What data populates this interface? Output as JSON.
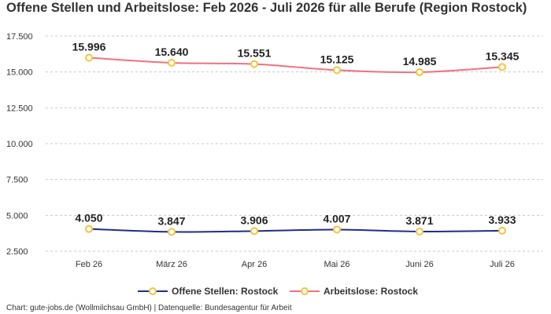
{
  "title": "Offene Stellen und Arbeitslose: Feb 2026 - Juli 2026 für alle Berufe (Region Rostock)",
  "footer": "Chart: gute-jobs.de (Wollmilchsau GmbH) | Datenquelle: Bundesagentur für Arbeit",
  "chart_data": {
    "type": "line",
    "title": "Offene Stellen und Arbeitslose: Feb 2026 - Juli 2026 für alle Berufe (Region Rostock)",
    "categories": [
      "Feb 26",
      "März 26",
      "Apr 26",
      "Mai 26",
      "Juni 26",
      "Juli 26"
    ],
    "series": [
      {
        "name": "Offene Stellen: Rostock",
        "color": "#1f2c8c",
        "values": [
          4050,
          3847,
          3906,
          4007,
          3871,
          3933
        ],
        "labels": [
          "4.050",
          "3.847",
          "3.906",
          "4.007",
          "3.871",
          "3.933"
        ]
      },
      {
        "name": "Arbeitslose: Rostock",
        "color": "#f07080",
        "values": [
          15996,
          15640,
          15551,
          15125,
          14985,
          15345
        ],
        "labels": [
          "15.996",
          "15.640",
          "15.551",
          "15.125",
          "14.985",
          "15.345"
        ]
      }
    ],
    "marker_color": "#f5c33b",
    "y_ticks": [
      2500,
      5000,
      7500,
      10000,
      12500,
      15000,
      17500
    ],
    "y_tick_labels": [
      "2.500",
      "5.000",
      "7.500",
      "10.000",
      "12.500",
      "15.000",
      "17.500"
    ],
    "ylim": [
      2500,
      17500
    ],
    "grid": "horizontal dashed",
    "legend_position": "bottom"
  }
}
